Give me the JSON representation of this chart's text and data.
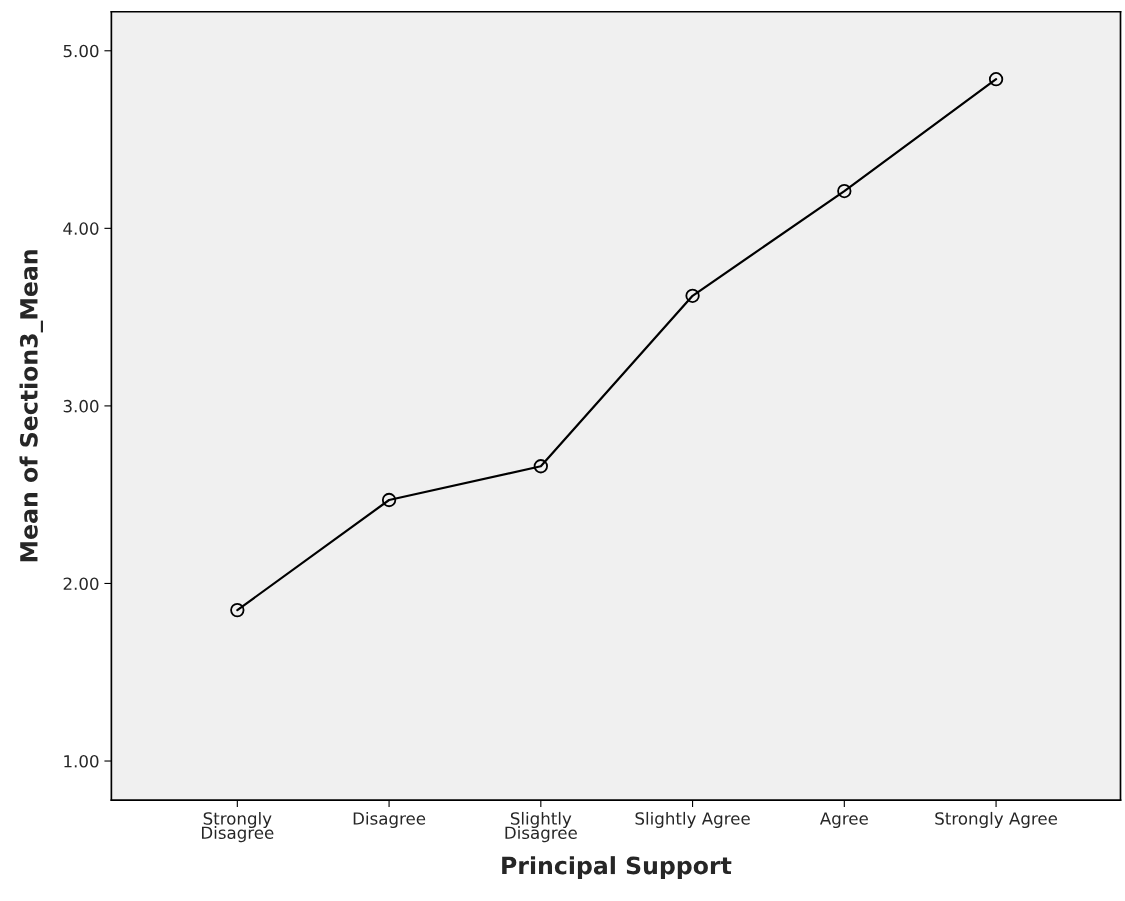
{
  "chart_data": {
    "type": "line",
    "xlabel": "Principal Support",
    "ylabel": "Mean of Section3_Mean",
    "categories": [
      "Strongly\nDisagree",
      "Disagree",
      "Slightly\nDisagree",
      "Slightly Agree",
      "Agree",
      "Strongly Agree"
    ],
    "series": [
      {
        "color": "#000000",
        "values": [
          1.85,
          2.47,
          2.66,
          3.62,
          4.21,
          4.84
        ]
      }
    ],
    "ylim": [
      0.78,
      5.22
    ],
    "yticks": [
      {
        "value": 1,
        "label": "1.00"
      },
      {
        "value": 2,
        "label": "2.00"
      },
      {
        "value": 3,
        "label": "3.00"
      },
      {
        "value": 4,
        "label": "4.00"
      },
      {
        "value": 5,
        "label": "5.00"
      }
    ],
    "grid": false,
    "legend": false,
    "marker": "circle",
    "line_style": "solid"
  }
}
